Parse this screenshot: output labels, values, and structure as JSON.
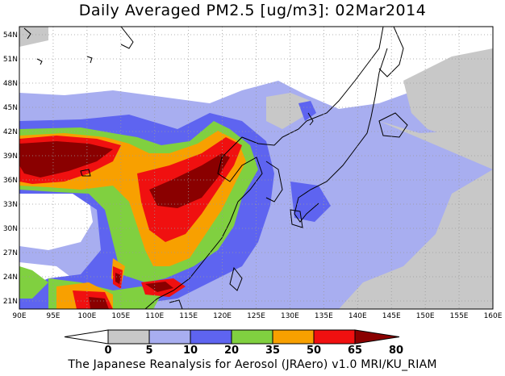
{
  "title": "Daily Averaged PM2.5 [ug/m3]: 02Mar2014",
  "footer": "The Japanese Reanalysis for Aerosol (JRAero) v1.0 MRI/KU_RIAM",
  "map": {
    "lon_range": [
      90,
      160
    ],
    "lat_range": [
      20,
      55
    ],
    "lon_ticks": [
      "90E",
      "95E",
      "100E",
      "105E",
      "110E",
      "115E",
      "120E",
      "125E",
      "130E",
      "135E",
      "140E",
      "145E",
      "150E",
      "155E",
      "160E"
    ],
    "lat_ticks": [
      "21N",
      "24N",
      "27N",
      "30N",
      "33N",
      "36N",
      "39N",
      "42N",
      "45N",
      "48N",
      "51N",
      "54N"
    ],
    "grid": true
  },
  "colorbar": {
    "labels": [
      "0",
      "5",
      "10",
      "20",
      "35",
      "50",
      "65",
      "80"
    ],
    "colors": [
      "#ffffff",
      "#c8c8c8",
      "#a8aef0",
      "#5e64f0",
      "#80d040",
      "#f8a000",
      "#f01010",
      "#8a0000"
    ],
    "under_color": "#ffffff",
    "over_color": "#8a0000"
  }
}
